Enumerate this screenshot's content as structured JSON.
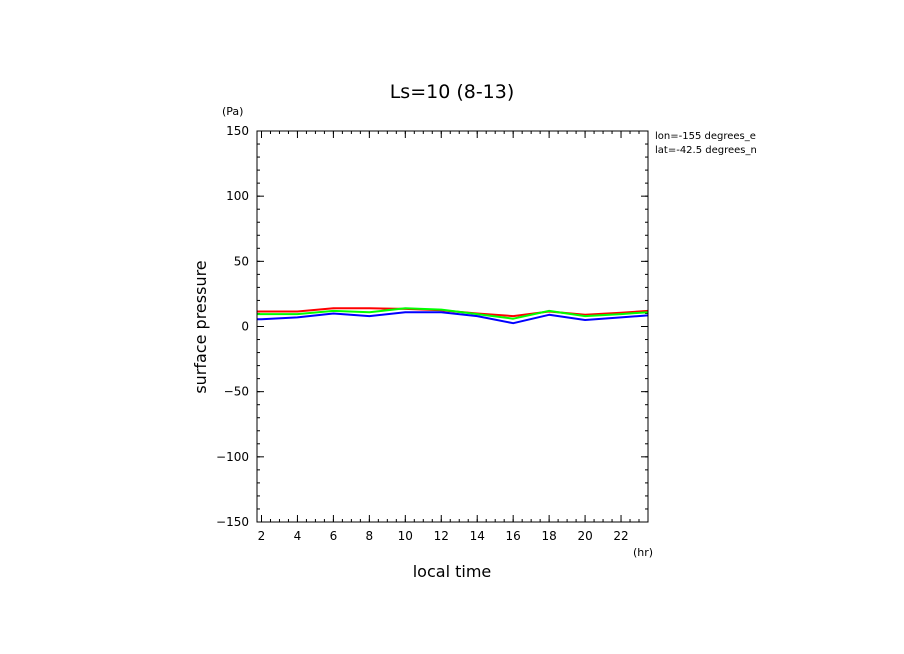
{
  "chart_data": {
    "type": "line",
    "title": "Ls=10 (8-13)",
    "xlabel": "local time",
    "ylabel": "surface pressure",
    "x_unit": "(hr)",
    "y_unit": "(Pa)",
    "xlim": [
      1.75,
      23.5
    ],
    "ylim": [
      -150,
      150
    ],
    "x_ticks": [
      2,
      4,
      6,
      8,
      10,
      12,
      14,
      16,
      18,
      20,
      22
    ],
    "y_ticks": [
      150,
      100,
      50,
      0,
      -50,
      -100,
      -150
    ],
    "annotations": [
      "lon=-155 degrees_e",
      "lat=-42.5 degrees_n"
    ],
    "grid": false,
    "x": [
      1.75,
      2,
      4,
      6,
      8,
      10,
      12,
      14,
      16,
      18,
      20,
      22,
      23.5
    ],
    "series": [
      {
        "color": "#ff0000",
        "values": [
          11.5,
          11.5,
          11.5,
          14,
          14,
          13.5,
          12.5,
          10,
          8,
          11.5,
          9,
          10.5,
          12
        ]
      },
      {
        "color": "#00ff00",
        "values": [
          9.5,
          9.5,
          9.5,
          12,
          11,
          14,
          13,
          9.5,
          6,
          12,
          8,
          9.5,
          11
        ]
      },
      {
        "color": "#0000ff",
        "values": [
          5.5,
          5.5,
          7,
          10,
          8,
          11,
          11,
          8,
          2.5,
          9,
          5,
          7,
          8.5
        ]
      }
    ]
  }
}
